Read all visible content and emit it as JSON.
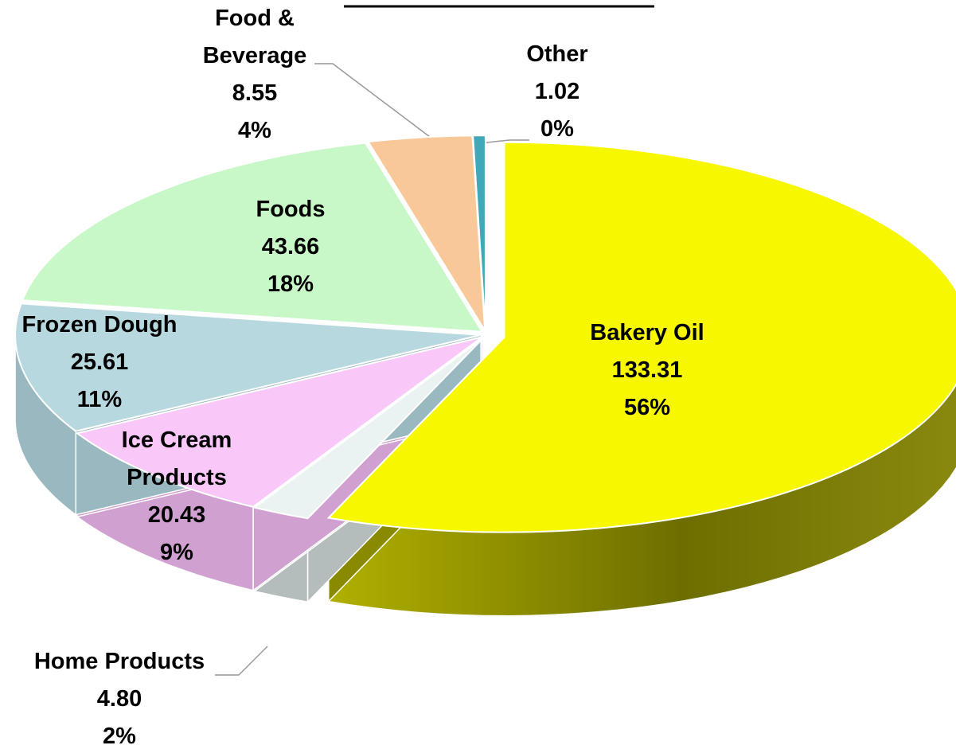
{
  "chart_data": {
    "type": "pie3d",
    "categories": [
      "Bakery Oil",
      "Home Products",
      "Ice Cream Products",
      "Frozen Dough",
      "Foods",
      "Food & Beverage",
      "Other"
    ],
    "values": [
      133.31,
      4.8,
      20.43,
      25.61,
      43.66,
      8.55,
      1.02
    ],
    "value_labels": [
      "133.31",
      "4.80",
      "20.43",
      "25.61",
      "43.66",
      "8.55",
      "1.02"
    ],
    "percentages": [
      56,
      2,
      9,
      11,
      18,
      4,
      0
    ],
    "percentage_labels": [
      "56%",
      "2%",
      "9%",
      "11%",
      "18%",
      "4%",
      "0%"
    ],
    "colors": [
      "#f7f700",
      "#eaf2f2",
      "#f9c8f9",
      "#b8d8e0",
      "#c8f8c8",
      "#f8c898",
      "#40a8b8"
    ],
    "side_colors": [
      "#8a8a00",
      "#b4bcbc",
      "#d0a0d0",
      "#9ab8c0",
      "#a0d0a0",
      "#d0a070",
      "#2a8090"
    ]
  }
}
